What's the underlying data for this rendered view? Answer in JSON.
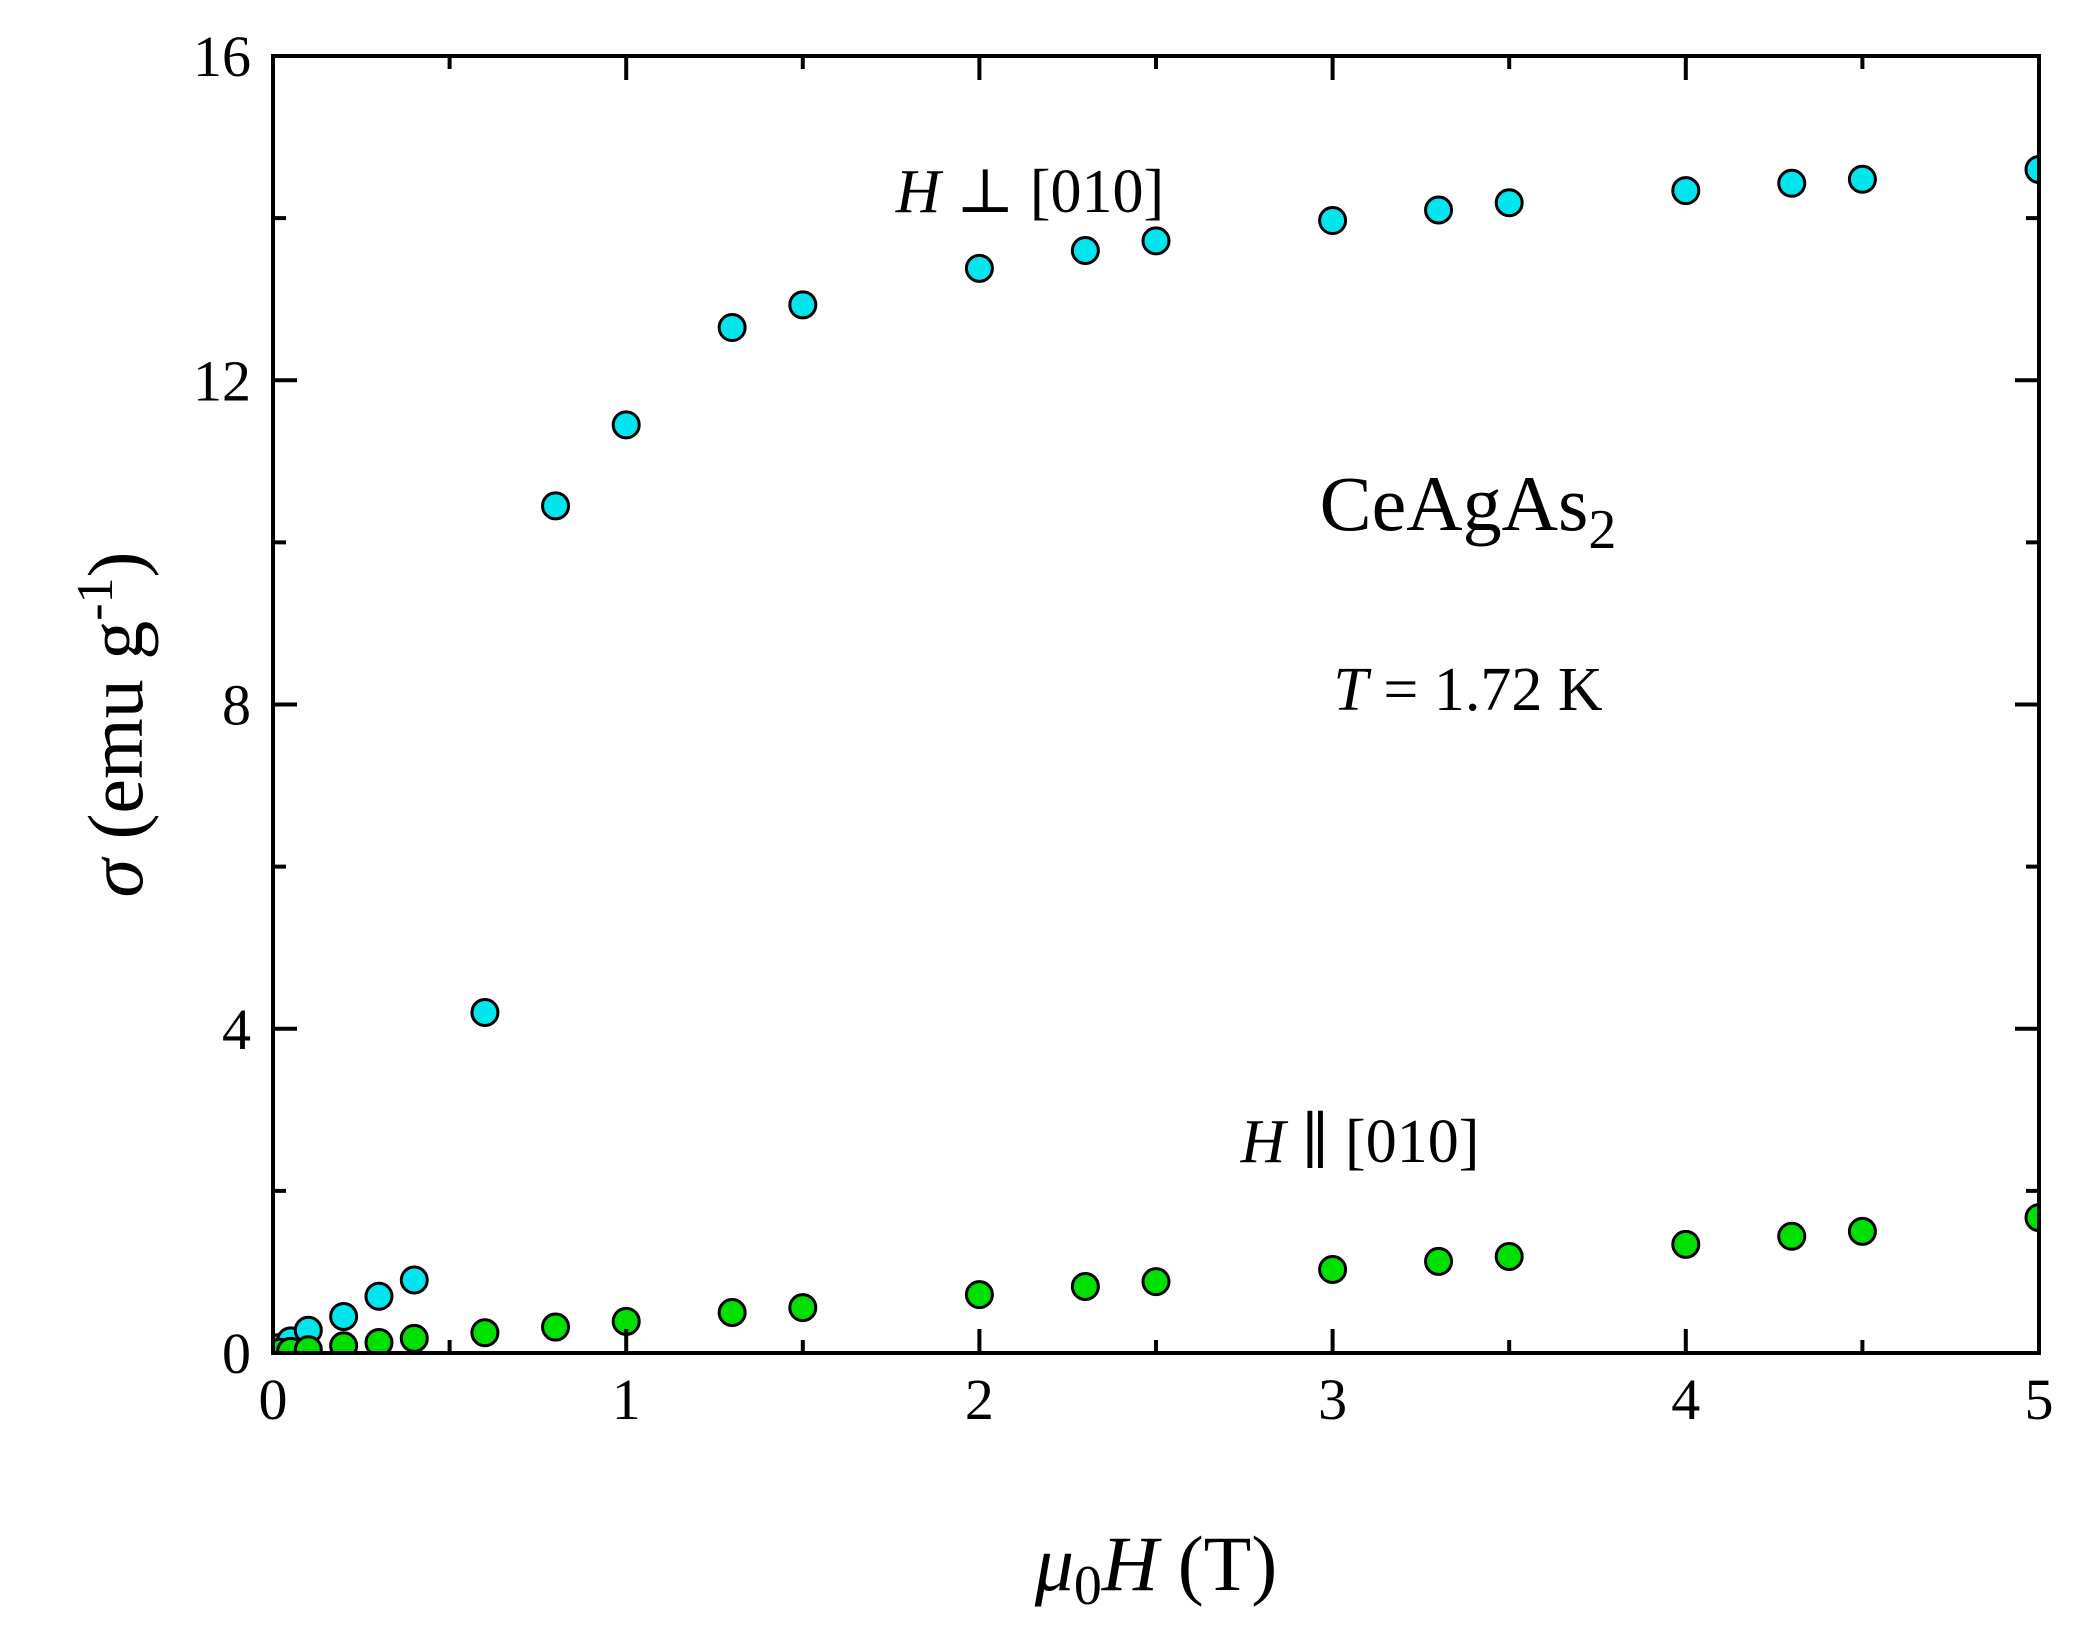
{
  "chart_data": {
    "type": "scatter",
    "title": "",
    "xlabel": {
      "mu": "μ",
      "sub": "0",
      "h": "H",
      "unit": " (T)"
    },
    "ylabel": {
      "sigma": "σ",
      "unit": " (emu g",
      "exp": "-1",
      "close": ")"
    },
    "xlim": [
      0,
      5
    ],
    "ylim": [
      0,
      16
    ],
    "xticks": [
      0,
      1,
      2,
      3,
      4,
      5
    ],
    "xtick_labels": [
      "0",
      "1",
      "2",
      "3",
      "4",
      "5"
    ],
    "yticks": [
      0,
      4,
      8,
      12,
      16
    ],
    "ytick_labels": [
      "0",
      "4",
      "8",
      "12",
      "16"
    ],
    "grid": false,
    "annotations": {
      "compound_main": "CeAgAs",
      "compound_sub": "2",
      "temp_symbol": "T",
      "temp_value": " = 1.72 K",
      "perp_h": "H",
      "perp_rest": " ⊥ [010]",
      "par_h": "H",
      "par_rest": " ∥ [010]"
    },
    "series": [
      {
        "name": "H ⊥ [010]",
        "color": "#00e5ee",
        "x": [
          0.02,
          0.05,
          0.1,
          0.2,
          0.3,
          0.4,
          0.6,
          0.8,
          1.0,
          1.3,
          1.5,
          2.0,
          2.3,
          2.5,
          3.0,
          3.3,
          3.5,
          4.0,
          4.3,
          4.5,
          5.0
        ],
        "y": [
          0.07,
          0.15,
          0.28,
          0.45,
          0.7,
          0.9,
          4.2,
          10.45,
          11.45,
          12.65,
          12.93,
          13.38,
          13.6,
          13.72,
          13.97,
          14.1,
          14.19,
          14.34,
          14.43,
          14.48,
          14.6
        ]
      },
      {
        "name": "H ∥ [010]",
        "color": "#00e000",
        "x": [
          0.02,
          0.05,
          0.1,
          0.2,
          0.3,
          0.4,
          0.6,
          0.8,
          1.0,
          1.3,
          1.5,
          2.0,
          2.3,
          2.5,
          3.0,
          3.3,
          3.5,
          4.0,
          4.3,
          4.5,
          5.0
        ],
        "y": [
          0.01,
          0.02,
          0.04,
          0.09,
          0.13,
          0.18,
          0.25,
          0.32,
          0.39,
          0.5,
          0.56,
          0.72,
          0.82,
          0.88,
          1.03,
          1.13,
          1.19,
          1.34,
          1.44,
          1.5,
          1.67
        ]
      }
    ]
  }
}
